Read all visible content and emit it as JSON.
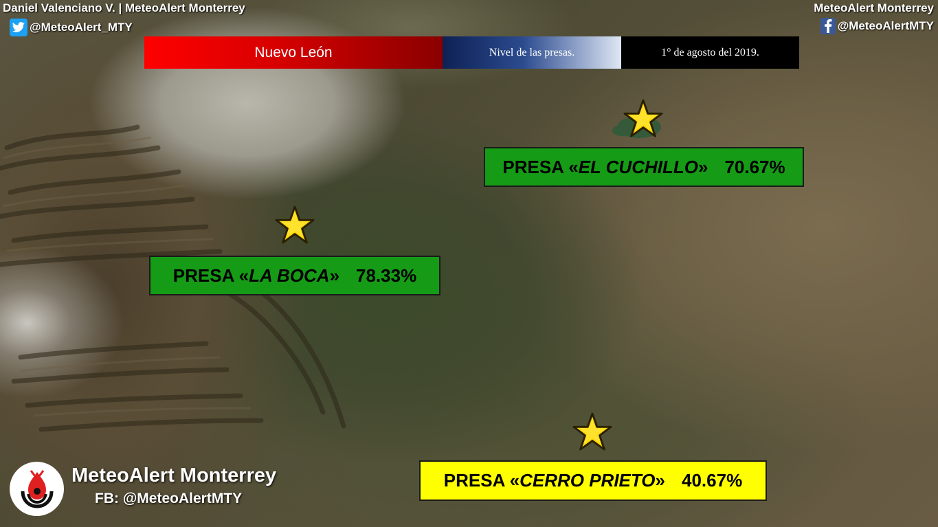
{
  "credits": {
    "left": "Daniel Valenciano V. | MeteoAlert Monterrey",
    "twitter_handle": "@MeteoAlert_MTY",
    "right": "MeteoAlert Monterrey",
    "facebook_handle": "@MeteoAlertMTY"
  },
  "header": {
    "region": "Nuevo León",
    "topic": "Nivel de las presas.",
    "date": "1° de agosto del 2019."
  },
  "dams": [
    {
      "prefix": "PRESA «",
      "name": "EL CUCHILLO",
      "suffix": "»",
      "percent": "70.67%",
      "color": "#169b16"
    },
    {
      "prefix": "PRESA «",
      "name": "LA BOCA",
      "suffix": "»",
      "percent": "78.33%",
      "color": "#169b16"
    },
    {
      "prefix": "PRESA «",
      "name": "CERRO PRIETO",
      "suffix": "»",
      "percent": "40.67%",
      "color": "#ffff00"
    }
  ],
  "brand": {
    "name": "MeteoAlert Monterrey",
    "facebook": "FB: @MeteoAlertMTY"
  },
  "colors": {
    "star_fill": "#ffd700",
    "twitter": "#1da1f2",
    "facebook": "#3b5998",
    "logo_red": "#e02020"
  },
  "icons": [
    "twitter-icon",
    "facebook-icon",
    "star-icon",
    "meteoalert-logo-icon"
  ]
}
